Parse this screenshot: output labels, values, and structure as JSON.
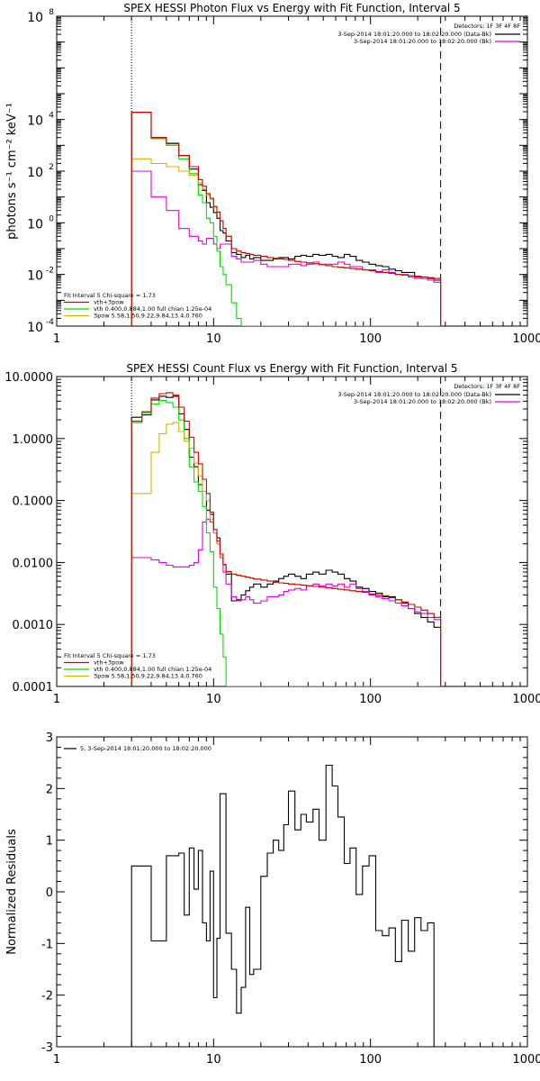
{
  "chart_data": [
    {
      "type": "line",
      "title": "SPEX HESSI Photon Flux vs Energy with Fit Function, Interval 5",
      "xlabel": "",
      "ylabel": "photons s⁻¹ cm⁻² keV⁻¹",
      "xscale": "log",
      "yscale": "log",
      "xlim": [
        1,
        1000
      ],
      "ylim": [
        0.0001,
        100000000
      ],
      "xticks": [
        {
          "v": 1,
          "label": "1"
        },
        {
          "v": 10,
          "label": "10"
        },
        {
          "v": 100,
          "label": "100"
        },
        {
          "v": 1000,
          "label": "1000"
        }
      ],
      "yticks": [
        {
          "v": 0.0001,
          "base": "10",
          "exp": "-4"
        },
        {
          "v": 0.01,
          "base": "10",
          "exp": "-2"
        },
        {
          "v": 1,
          "base": "10",
          "exp": "0"
        },
        {
          "v": 100,
          "base": "10",
          "exp": "2"
        },
        {
          "v": 10000,
          "base": "10",
          "exp": "4"
        },
        {
          "v": 100000000,
          "base": "10",
          "exp": "8"
        }
      ],
      "vlines": [
        {
          "x": 3,
          "style": "dotted"
        },
        {
          "x": 280,
          "style": "dashed"
        }
      ],
      "legend_top": [
        "Detectors: 1F 3F 4F 8F",
        "3-Sep-2014 18:01:20.000 to 18:02:20.000 (Data-Bk)",
        "3-Sep-2014 18:01:20.000 to 18:02:20.000 (Bk)"
      ],
      "legend_bottom": [
        "Fit Interval 5   Chi-square = 1.73",
        "vth+3pow",
        "vth 0.400,0.884,1.00  full chian 1.25e-04",
        "3pow 5.58,1.50,9.22,9.84,13.4,0.760"
      ],
      "x_edges": [
        3,
        3.5,
        4,
        4.5,
        5,
        5.5,
        6,
        6.5,
        7,
        7.5,
        8,
        8.5,
        9,
        9.5,
        10,
        10.5,
        11,
        11.5,
        12,
        13,
        14,
        15,
        16,
        17,
        18,
        20,
        22,
        24,
        26,
        28,
        30,
        33,
        36,
        39,
        43,
        47,
        52,
        57,
        62,
        68,
        74,
        81,
        89,
        98,
        108,
        119,
        131,
        144,
        158,
        174,
        191,
        210,
        231,
        254,
        280
      ],
      "series": [
        {
          "name": "3-Sep-2014 18:01:20.000 to 18:02:20.000 (Data-Bk)",
          "color": "#000000",
          "width": 1.1,
          "values": [
            19000,
            19000,
            2000,
            2000,
            1200,
            1200,
            400,
            400,
            120,
            120,
            30,
            18,
            6,
            4,
            2.5,
            1.5,
            0.5,
            0.4,
            0.2,
            0.07,
            0.06,
            0.045,
            0.055,
            0.04,
            0.045,
            0.035,
            0.035,
            0.04,
            0.045,
            0.045,
            0.04,
            0.05,
            0.055,
            0.05,
            0.06,
            0.055,
            0.06,
            0.05,
            0.045,
            0.06,
            0.05,
            0.035,
            0.03,
            0.025,
            0.022,
            0.02,
            0.016,
            0.014,
            0.012,
            0.012,
            0.008,
            0.007,
            0.007,
            0.006
          ]
        },
        {
          "name": "3-Sep-2014 18:01:20.000 to 18:02:20.000 (Bk)",
          "color": "#e000e0",
          "width": 1.1,
          "values": [
            100,
            100,
            10,
            10,
            3,
            3,
            0.6,
            0.6,
            0.3,
            0.3,
            0.2,
            0.15,
            0.25,
            0.25,
            0.15,
            0.1,
            0.15,
            0.15,
            0.15,
            0.05,
            0.04,
            0.03,
            0.03,
            0.03,
            0.035,
            0.025,
            0.02,
            0.02,
            0.02,
            0.02,
            0.025,
            0.025,
            0.022,
            0.025,
            0.03,
            0.025,
            0.025,
            0.025,
            0.03,
            0.025,
            0.02,
            0.02,
            0.015,
            0.015,
            0.012,
            0.015,
            0.012,
            0.01,
            0.01,
            0.008,
            0.007,
            0.007,
            0.006,
            0.005
          ]
        },
        {
          "name": "vth",
          "color": "#00dd00",
          "width": 1.1,
          "values": [
            19000,
            19000,
            1800,
            1800,
            1000,
            1000,
            300,
            300,
            80,
            80,
            12,
            6,
            1.5,
            1,
            0.3,
            0.08,
            0.02,
            0.01,
            0.004,
            0.0008,
            0.0002,
            0.0001,
            0.0001,
            0.0001,
            0.0001,
            0.0001,
            0.0001,
            0.0001,
            0.0001,
            0.0001,
            0.0001,
            0.0001,
            0.0001,
            0.0001,
            0.0001,
            0.0001,
            0.0001,
            0.0001,
            0.0001,
            0.0001,
            0.0001,
            0.0001,
            0.0001,
            0.0001,
            0.0001,
            0.0001,
            0.0001,
            0.0001,
            0.0001,
            0.0001,
            0.0001,
            0.0001,
            0.0001,
            0.0001
          ]
        },
        {
          "name": "3pow",
          "color": "#d6b400",
          "width": 1.1,
          "values": [
            300,
            300,
            200,
            200,
            150,
            150,
            100,
            100,
            70,
            70,
            35,
            20,
            12,
            8,
            4,
            2.5,
            1.2,
            0.6,
            0.3,
            0.1,
            0.08,
            0.07,
            0.065,
            0.06,
            0.055,
            0.05,
            0.045,
            0.042,
            0.04,
            0.038,
            0.035,
            0.032,
            0.03,
            0.028,
            0.026,
            0.024,
            0.022,
            0.02,
            0.019,
            0.018,
            0.017,
            0.016,
            0.015,
            0.014,
            0.013,
            0.012,
            0.011,
            0.01,
            0.0095,
            0.009,
            0.0085,
            0.008,
            0.0075,
            0.007
          ]
        },
        {
          "name": "vth+3pow",
          "color": "#d40000",
          "width": 1.1,
          "values": [
            19300,
            19300,
            2000,
            2000,
            1150,
            1150,
            400,
            400,
            150,
            150,
            47,
            26,
            13.5,
            9,
            4.3,
            2.6,
            1.2,
            0.6,
            0.3,
            0.1,
            0.08,
            0.07,
            0.065,
            0.06,
            0.055,
            0.05,
            0.045,
            0.042,
            0.04,
            0.038,
            0.035,
            0.032,
            0.03,
            0.028,
            0.026,
            0.024,
            0.022,
            0.02,
            0.019,
            0.018,
            0.017,
            0.016,
            0.015,
            0.014,
            0.013,
            0.012,
            0.011,
            0.01,
            0.0095,
            0.009,
            0.0085,
            0.008,
            0.0075,
            0.007
          ]
        }
      ]
    },
    {
      "type": "line",
      "title": "SPEX HESSI Count Flux vs Energy with Fit Function, Interval 5",
      "xlabel": "",
      "ylabel": "",
      "xscale": "log",
      "yscale": "log",
      "xlim": [
        1,
        1000
      ],
      "ylim": [
        0.0001,
        10
      ],
      "xticks": [
        {
          "v": 1,
          "label": "1"
        },
        {
          "v": 10,
          "label": "10"
        },
        {
          "v": 100,
          "label": "100"
        },
        {
          "v": 1000,
          "label": "1000"
        }
      ],
      "yticks": [
        {
          "v": 0.0001,
          "label": "0.0001"
        },
        {
          "v": 0.001,
          "label": "0.0010"
        },
        {
          "v": 0.01,
          "label": "0.0100"
        },
        {
          "v": 0.1,
          "label": "0.1000"
        },
        {
          "v": 1,
          "label": "1.0000"
        },
        {
          "v": 10,
          "label": "10.0000"
        }
      ],
      "vlines": [
        {
          "x": 3,
          "style": "dotted"
        },
        {
          "x": 280,
          "style": "dashed"
        }
      ],
      "legend_top": [
        "Detectors: 1F 3F 4F 8F",
        "3-Sep-2014 18:01:20.000 to 18:02:20.000 (Data-Bk)",
        "3-Sep-2014 18:01:20.000 to 18:02:20.000 (Bk)"
      ],
      "legend_bottom": [
        "Fit Interval 5   Chi-square = 1.73",
        "vth+3pow",
        "vth 0.400,0.884,1.00  full chian 1.25e-04",
        "3pow 5.58,1.50,9.22,9.84,13.4,0.760"
      ],
      "x_edges": [
        3,
        3.5,
        4,
        4.5,
        5,
        5.5,
        6,
        6.5,
        7,
        7.5,
        8,
        8.5,
        9,
        9.5,
        10,
        10.5,
        11,
        11.5,
        12,
        13,
        14,
        15,
        16,
        17,
        18,
        20,
        22,
        24,
        26,
        28,
        30,
        33,
        36,
        39,
        43,
        47,
        52,
        57,
        62,
        68,
        74,
        81,
        89,
        98,
        108,
        119,
        131,
        144,
        158,
        174,
        191,
        210,
        231,
        254,
        280
      ],
      "series": [
        {
          "name": "3-Sep-2014 18:01:20.000 to 18:02:20.000 (Data-Bk)",
          "color": "#000000",
          "width": 1.1,
          "values": [
            2.2,
            2.4,
            4.2,
            4.8,
            4.6,
            4.8,
            2.5,
            1.4,
            0.5,
            0.35,
            0.18,
            0.14,
            0.07,
            0.06,
            0.03,
            0.025,
            0.012,
            0.009,
            0.0065,
            0.0024,
            0.0025,
            0.003,
            0.0035,
            0.004,
            0.0045,
            0.004,
            0.0045,
            0.005,
            0.0055,
            0.006,
            0.0065,
            0.006,
            0.0055,
            0.0065,
            0.007,
            0.0065,
            0.0075,
            0.007,
            0.0065,
            0.0055,
            0.005,
            0.004,
            0.0038,
            0.0034,
            0.0032,
            0.0028,
            0.0028,
            0.0025,
            0.0022,
            0.0018,
            0.0015,
            0.0013,
            0.0011,
            0.0009
          ]
        },
        {
          "name": "3-Sep-2014 18:01:20.000 to 18:02:20.000 (Bk)",
          "color": "#e000e0",
          "width": 1.1,
          "values": [
            0.012,
            0.012,
            0.011,
            0.01,
            0.009,
            0.0085,
            0.0085,
            0.0085,
            0.009,
            0.01,
            0.016,
            0.045,
            0.05,
            0.045,
            0.03,
            0.02,
            0.012,
            0.007,
            0.0045,
            0.0028,
            0.0024,
            0.0025,
            0.0028,
            0.0025,
            0.0022,
            0.0024,
            0.0028,
            0.0028,
            0.003,
            0.0034,
            0.0036,
            0.0038,
            0.0036,
            0.0042,
            0.0045,
            0.0042,
            0.0045,
            0.0042,
            0.0045,
            0.004,
            0.0045,
            0.0038,
            0.0034,
            0.003,
            0.0028,
            0.0026,
            0.0024,
            0.0022,
            0.002,
            0.0018,
            0.0016,
            0.0015,
            0.0013,
            0.0012
          ]
        },
        {
          "name": "vth",
          "color": "#00dd00",
          "width": 1.1,
          "values": [
            1.8,
            2.6,
            3.6,
            4.1,
            3.8,
            3.2,
            2.0,
            1.0,
            0.35,
            0.2,
            0.14,
            0.08,
            0.03,
            0.015,
            0.004,
            0.0018,
            0.0007,
            0.0003,
            0.0001,
            0.0001,
            0.0001,
            0.0001,
            0.0001,
            0.0001,
            0.0001,
            0.0001,
            0.0001,
            0.0001,
            0.0001,
            0.0001,
            0.0001,
            0.0001,
            0.0001,
            0.0001,
            0.0001,
            0.0001,
            0.0001,
            0.0001,
            0.0001,
            0.0001,
            0.0001,
            0.0001,
            0.0001,
            0.0001,
            0.0001,
            0.0001,
            0.0001,
            0.0001,
            0.0001,
            0.0001,
            0.0001,
            0.0001,
            0.0001,
            0.0001
          ]
        },
        {
          "name": "3pow",
          "color": "#d6b400",
          "width": 1.1,
          "values": [
            0.13,
            0.13,
            0.6,
            1.2,
            1.7,
            1.8,
            1.3,
            0.9,
            0.7,
            0.4,
            0.25,
            0.14,
            0.1,
            0.05,
            0.03,
            0.02,
            0.013,
            0.009,
            0.007,
            0.0065,
            0.0062,
            0.006,
            0.0058,
            0.0056,
            0.0054,
            0.0052,
            0.005,
            0.0048,
            0.0047,
            0.0046,
            0.0045,
            0.0044,
            0.0043,
            0.0042,
            0.0041,
            0.004,
            0.0039,
            0.0038,
            0.0037,
            0.0036,
            0.0035,
            0.0034,
            0.0033,
            0.0031,
            0.003,
            0.0029,
            0.0027,
            0.0025,
            0.0023,
            0.0021,
            0.0019,
            0.0017,
            0.0015,
            0.0013
          ]
        },
        {
          "name": "vth+3pow",
          "color": "#d40000",
          "width": 1.1,
          "values": [
            1.9,
            2.7,
            4.5,
            5.3,
            5.5,
            5.0,
            3.2,
            1.9,
            1.05,
            0.6,
            0.39,
            0.22,
            0.13,
            0.065,
            0.034,
            0.022,
            0.0137,
            0.0093,
            0.0071,
            0.0065,
            0.0062,
            0.006,
            0.0058,
            0.0056,
            0.0054,
            0.0052,
            0.005,
            0.0048,
            0.0047,
            0.0046,
            0.0045,
            0.0044,
            0.0043,
            0.0042,
            0.0041,
            0.004,
            0.0039,
            0.0038,
            0.0037,
            0.0036,
            0.0035,
            0.0034,
            0.0033,
            0.0031,
            0.003,
            0.0029,
            0.0027,
            0.0025,
            0.0023,
            0.0021,
            0.0019,
            0.0017,
            0.0015,
            0.0013
          ]
        }
      ]
    },
    {
      "type": "line",
      "title": "",
      "xlabel": "",
      "ylabel": "Normalized Residuals",
      "xscale": "log",
      "yscale": "linear",
      "xlim": [
        1,
        1000
      ],
      "ylim": [
        -3,
        3
      ],
      "xticks": [
        {
          "v": 1,
          "label": "1"
        },
        {
          "v": 10,
          "label": "10"
        },
        {
          "v": 100,
          "label": "100"
        },
        {
          "v": 1000,
          "label": "1000"
        }
      ],
      "yticks": [
        {
          "v": -3,
          "label": "-3"
        },
        {
          "v": -2,
          "label": "-2"
        },
        {
          "v": -1,
          "label": "-1"
        },
        {
          "v": 0,
          "label": "0"
        },
        {
          "v": 1,
          "label": "1"
        },
        {
          "v": 2,
          "label": "2"
        },
        {
          "v": 3,
          "label": "3"
        }
      ],
      "legend_top_left": "5,  3-Sep-2014 18:01:20.000 to 18:02:20.000",
      "x_edges": [
        3,
        4,
        5,
        6,
        6.5,
        7,
        7.5,
        8,
        8.5,
        9,
        9.5,
        10,
        10.5,
        11,
        12,
        13,
        14,
        15,
        16,
        17,
        18,
        20,
        22,
        24,
        26,
        28,
        30,
        33,
        36,
        39,
        43,
        47,
        52,
        57,
        62,
        68,
        74,
        81,
        89,
        98,
        108,
        119,
        131,
        144,
        158,
        174,
        191,
        210,
        231,
        254,
        280
      ],
      "series": [
        {
          "name": "5,  3-Sep-2014 18:01:20.000 to 18:02:20.000",
          "color": "#000000",
          "width": 1.1,
          "values": [
            0.5,
            -0.95,
            0.7,
            0.75,
            -0.45,
            0.85,
            0.05,
            0.8,
            -0.6,
            -0.95,
            0.4,
            -2.05,
            -0.9,
            1.9,
            -0.8,
            -1.5,
            -2.35,
            -1.85,
            -0.3,
            -1.6,
            -1.5,
            0.3,
            0.75,
            1.0,
            0.8,
            1.3,
            1.95,
            1.2,
            1.5,
            1.35,
            1.6,
            1.0,
            2.45,
            2.05,
            1.45,
            0.55,
            0.85,
            -0.05,
            0.5,
            0.7,
            -0.75,
            -0.85,
            -0.7,
            -1.35,
            -0.55,
            -1.15,
            -0.5,
            -0.75,
            -0.6,
            -3.1
          ]
        }
      ]
    }
  ]
}
